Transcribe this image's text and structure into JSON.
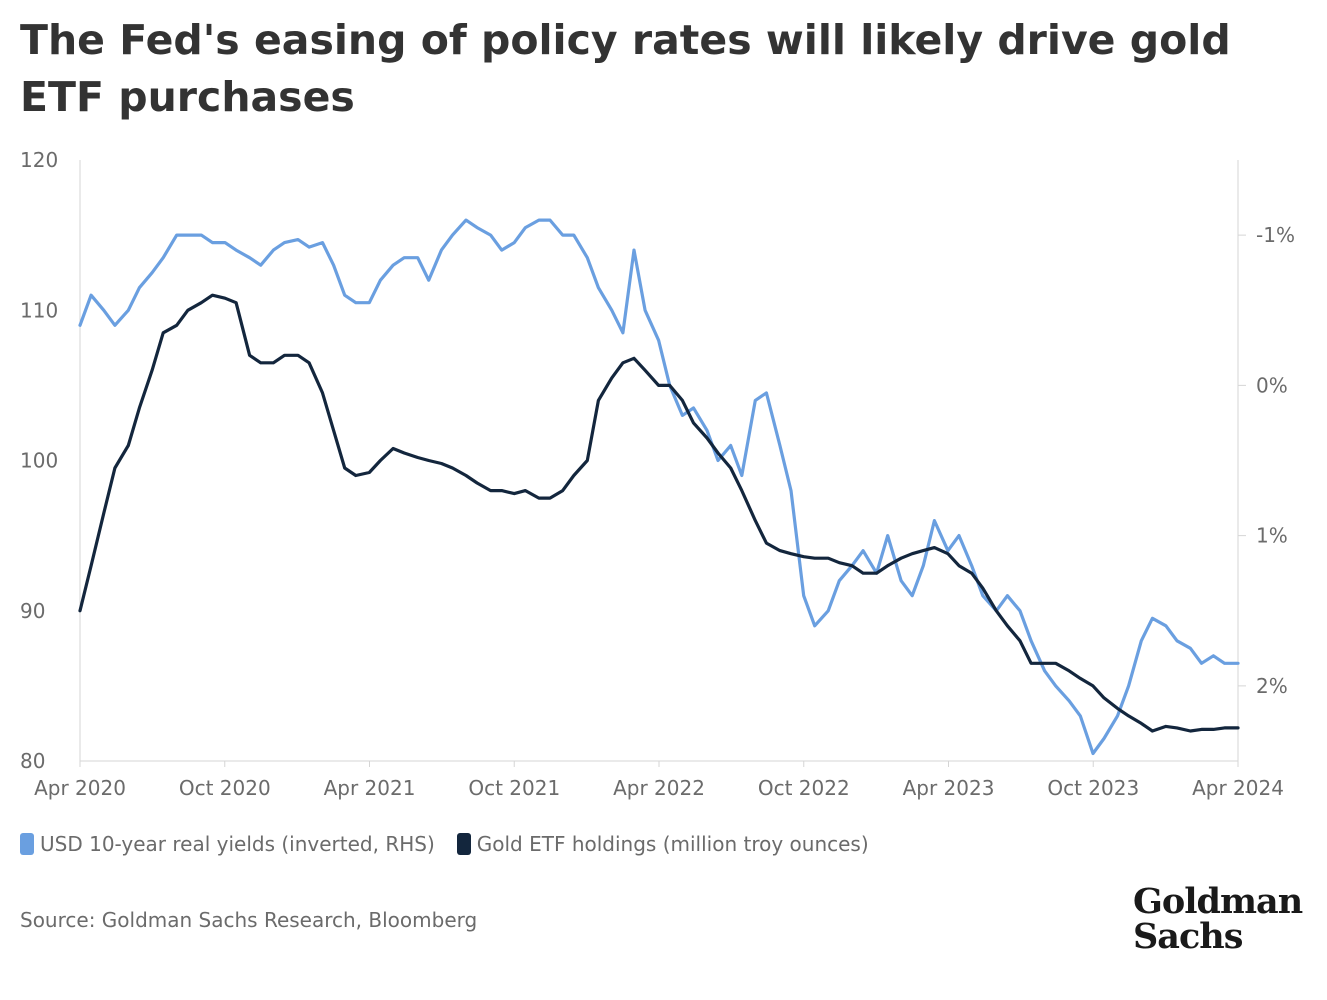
{
  "title": "The Fed's easing of policy rates will likely drive gold ETF purchases",
  "source": "Source: Goldman Sachs Research, Bloomberg",
  "logo": {
    "line1": "Goldman",
    "line2": "Sachs"
  },
  "colors": {
    "yields": "#6a9fe0",
    "gold": "#13263d",
    "axis": "#d5d5d5",
    "text": "#6b6b6b"
  },
  "chart_data": {
    "type": "line",
    "title": "The Fed's easing of policy rates will likely drive gold ETF purchases",
    "x_ticks": [
      "Apr 2020",
      "Oct 2020",
      "Apr 2021",
      "Oct 2021",
      "Apr 2022",
      "Oct 2022",
      "Apr 2023",
      "Oct 2023",
      "Apr 2024"
    ],
    "x_range": [
      "2020-04",
      "2024-04"
    ],
    "y_left": {
      "ticks": [
        120,
        110,
        100,
        90,
        80
      ],
      "range": [
        80,
        120
      ],
      "label": ""
    },
    "y_right": {
      "ticks": [
        "-1%",
        "0%",
        "1%",
        "2%"
      ],
      "tick_values": [
        -1,
        0,
        1,
        2
      ],
      "range": [
        -1.5,
        2.5
      ],
      "inverted": true,
      "label": ""
    },
    "legend_position": "bottom-left",
    "grid": false,
    "series": [
      {
        "name": "USD 10-year real yields (inverted, RHS)",
        "axis": "right",
        "unit": "%",
        "points": [
          [
            "2020-04-01",
            -0.4
          ],
          [
            "2020-04-15",
            -0.6
          ],
          [
            "2020-05-01",
            -0.5
          ],
          [
            "2020-05-15",
            -0.4
          ],
          [
            "2020-06-01",
            -0.5
          ],
          [
            "2020-06-15",
            -0.65
          ],
          [
            "2020-07-01",
            -0.75
          ],
          [
            "2020-07-15",
            -0.85
          ],
          [
            "2020-08-01",
            -1.0
          ],
          [
            "2020-08-15",
            -1.0
          ],
          [
            "2020-09-01",
            -1.0
          ],
          [
            "2020-09-15",
            -0.95
          ],
          [
            "2020-10-01",
            -0.95
          ],
          [
            "2020-10-15",
            -0.9
          ],
          [
            "2020-11-01",
            -0.85
          ],
          [
            "2020-11-15",
            -0.8
          ],
          [
            "2020-12-01",
            -0.9
          ],
          [
            "2020-12-15",
            -0.95
          ],
          [
            "2021-01-01",
            -0.97
          ],
          [
            "2021-01-15",
            -0.92
          ],
          [
            "2021-02-01",
            -0.95
          ],
          [
            "2021-02-15",
            -0.8
          ],
          [
            "2021-03-01",
            -0.6
          ],
          [
            "2021-03-15",
            -0.55
          ],
          [
            "2021-04-01",
            -0.55
          ],
          [
            "2021-04-15",
            -0.7
          ],
          [
            "2021-05-01",
            -0.8
          ],
          [
            "2021-05-15",
            -0.85
          ],
          [
            "2021-06-01",
            -0.85
          ],
          [
            "2021-06-15",
            -0.7
          ],
          [
            "2021-07-01",
            -0.9
          ],
          [
            "2021-07-15",
            -1.0
          ],
          [
            "2021-08-01",
            -1.1
          ],
          [
            "2021-08-15",
            -1.05
          ],
          [
            "2021-09-01",
            -1.0
          ],
          [
            "2021-09-15",
            -0.9
          ],
          [
            "2021-10-01",
            -0.95
          ],
          [
            "2021-10-15",
            -1.05
          ],
          [
            "2021-11-01",
            -1.1
          ],
          [
            "2021-11-15",
            -1.1
          ],
          [
            "2021-12-01",
            -1.0
          ],
          [
            "2021-12-15",
            -1.0
          ],
          [
            "2022-01-01",
            -0.85
          ],
          [
            "2022-01-15",
            -0.65
          ],
          [
            "2022-02-01",
            -0.5
          ],
          [
            "2022-02-15",
            -0.35
          ],
          [
            "2022-03-01",
            -0.9
          ],
          [
            "2022-03-15",
            -0.5
          ],
          [
            "2022-04-01",
            -0.3
          ],
          [
            "2022-04-15",
            0.0
          ],
          [
            "2022-05-01",
            0.2
          ],
          [
            "2022-05-15",
            0.15
          ],
          [
            "2022-06-01",
            0.3
          ],
          [
            "2022-06-15",
            0.5
          ],
          [
            "2022-07-01",
            0.4
          ],
          [
            "2022-07-15",
            0.6
          ],
          [
            "2022-08-01",
            0.1
          ],
          [
            "2022-08-15",
            0.05
          ],
          [
            "2022-09-01",
            0.4
          ],
          [
            "2022-09-15",
            0.7
          ],
          [
            "2022-10-01",
            1.4
          ],
          [
            "2022-10-15",
            1.6
          ],
          [
            "2022-11-01",
            1.5
          ],
          [
            "2022-11-15",
            1.3
          ],
          [
            "2022-12-01",
            1.2
          ],
          [
            "2022-12-15",
            1.1
          ],
          [
            "2023-01-01",
            1.25
          ],
          [
            "2023-01-15",
            1.0
          ],
          [
            "2023-02-01",
            1.3
          ],
          [
            "2023-02-15",
            1.4
          ],
          [
            "2023-03-01",
            1.2
          ],
          [
            "2023-03-15",
            0.9
          ],
          [
            "2023-04-01",
            1.1
          ],
          [
            "2023-04-15",
            1.0
          ],
          [
            "2023-05-01",
            1.2
          ],
          [
            "2023-05-15",
            1.4
          ],
          [
            "2023-06-01",
            1.5
          ],
          [
            "2023-06-15",
            1.4
          ],
          [
            "2023-07-01",
            1.5
          ],
          [
            "2023-07-15",
            1.7
          ],
          [
            "2023-08-01",
            1.9
          ],
          [
            "2023-08-15",
            2.0
          ],
          [
            "2023-09-01",
            2.1
          ],
          [
            "2023-09-15",
            2.2
          ],
          [
            "2023-10-01",
            2.45
          ],
          [
            "2023-10-15",
            2.35
          ],
          [
            "2023-11-01",
            2.2
          ],
          [
            "2023-11-15",
            2.0
          ],
          [
            "2023-12-01",
            1.7
          ],
          [
            "2023-12-15",
            1.55
          ],
          [
            "2024-01-01",
            1.6
          ],
          [
            "2024-01-15",
            1.7
          ],
          [
            "2024-02-01",
            1.75
          ],
          [
            "2024-02-15",
            1.85
          ],
          [
            "2024-03-01",
            1.8
          ],
          [
            "2024-03-15",
            1.85
          ],
          [
            "2024-04-01",
            1.85
          ]
        ]
      },
      {
        "name": "Gold ETF holdings (million troy ounces)",
        "axis": "left",
        "unit": "million troy ounces",
        "points": [
          [
            "2020-04-01",
            90.0
          ],
          [
            "2020-04-15",
            93.0
          ],
          [
            "2020-05-01",
            96.5
          ],
          [
            "2020-05-15",
            99.5
          ],
          [
            "2020-06-01",
            101.0
          ],
          [
            "2020-06-15",
            103.5
          ],
          [
            "2020-07-01",
            106.0
          ],
          [
            "2020-07-15",
            108.5
          ],
          [
            "2020-08-01",
            109.0
          ],
          [
            "2020-08-15",
            110.0
          ],
          [
            "2020-09-01",
            110.5
          ],
          [
            "2020-09-15",
            111.0
          ],
          [
            "2020-10-01",
            110.8
          ],
          [
            "2020-10-15",
            110.5
          ],
          [
            "2020-11-01",
            107.0
          ],
          [
            "2020-11-15",
            106.5
          ],
          [
            "2020-12-01",
            106.5
          ],
          [
            "2020-12-15",
            107.0
          ],
          [
            "2021-01-01",
            107.0
          ],
          [
            "2021-01-15",
            106.5
          ],
          [
            "2021-02-01",
            104.5
          ],
          [
            "2021-02-15",
            102.0
          ],
          [
            "2021-03-01",
            99.5
          ],
          [
            "2021-03-15",
            99.0
          ],
          [
            "2021-04-01",
            99.2
          ],
          [
            "2021-04-15",
            100.0
          ],
          [
            "2021-05-01",
            100.8
          ],
          [
            "2021-05-15",
            100.5
          ],
          [
            "2021-06-01",
            100.2
          ],
          [
            "2021-06-15",
            100.0
          ],
          [
            "2021-07-01",
            99.8
          ],
          [
            "2021-07-15",
            99.5
          ],
          [
            "2021-08-01",
            99.0
          ],
          [
            "2021-08-15",
            98.5
          ],
          [
            "2021-09-01",
            98.0
          ],
          [
            "2021-09-15",
            98.0
          ],
          [
            "2021-10-01",
            97.8
          ],
          [
            "2021-10-15",
            98.0
          ],
          [
            "2021-11-01",
            97.5
          ],
          [
            "2021-11-15",
            97.5
          ],
          [
            "2021-12-01",
            98.0
          ],
          [
            "2021-12-15",
            99.0
          ],
          [
            "2022-01-01",
            100.0
          ],
          [
            "2022-01-15",
            104.0
          ],
          [
            "2022-02-01",
            105.5
          ],
          [
            "2022-02-15",
            106.5
          ],
          [
            "2022-03-01",
            106.8
          ],
          [
            "2022-03-15",
            106.0
          ],
          [
            "2022-04-01",
            105.0
          ],
          [
            "2022-04-15",
            105.0
          ],
          [
            "2022-05-01",
            104.0
          ],
          [
            "2022-05-15",
            102.5
          ],
          [
            "2022-06-01",
            101.5
          ],
          [
            "2022-06-15",
            100.5
          ],
          [
            "2022-07-01",
            99.5
          ],
          [
            "2022-07-15",
            98.0
          ],
          [
            "2022-08-01",
            96.0
          ],
          [
            "2022-08-15",
            94.5
          ],
          [
            "2022-09-01",
            94.0
          ],
          [
            "2022-09-15",
            93.8
          ],
          [
            "2022-10-01",
            93.6
          ],
          [
            "2022-10-15",
            93.5
          ],
          [
            "2022-11-01",
            93.5
          ],
          [
            "2022-11-15",
            93.2
          ],
          [
            "2022-12-01",
            93.0
          ],
          [
            "2022-12-15",
            92.5
          ],
          [
            "2023-01-01",
            92.5
          ],
          [
            "2023-01-15",
            93.0
          ],
          [
            "2023-02-01",
            93.5
          ],
          [
            "2023-02-15",
            93.8
          ],
          [
            "2023-03-01",
            94.0
          ],
          [
            "2023-03-15",
            94.2
          ],
          [
            "2023-04-01",
            93.8
          ],
          [
            "2023-04-15",
            93.0
          ],
          [
            "2023-05-01",
            92.5
          ],
          [
            "2023-05-15",
            91.5
          ],
          [
            "2023-06-01",
            90.0
          ],
          [
            "2023-06-15",
            89.0
          ],
          [
            "2023-07-01",
            88.0
          ],
          [
            "2023-07-15",
            86.5
          ],
          [
            "2023-08-01",
            86.5
          ],
          [
            "2023-08-15",
            86.5
          ],
          [
            "2023-09-01",
            86.0
          ],
          [
            "2023-09-15",
            85.5
          ],
          [
            "2023-10-01",
            85.0
          ],
          [
            "2023-10-15",
            84.2
          ],
          [
            "2023-11-01",
            83.5
          ],
          [
            "2023-11-15",
            83.0
          ],
          [
            "2023-12-01",
            82.5
          ],
          [
            "2023-12-15",
            82.0
          ],
          [
            "2024-01-01",
            82.3
          ],
          [
            "2024-01-15",
            82.2
          ],
          [
            "2024-02-01",
            82.0
          ],
          [
            "2024-02-15",
            82.1
          ],
          [
            "2024-03-01",
            82.1
          ],
          [
            "2024-03-15",
            82.2
          ],
          [
            "2024-04-01",
            82.2
          ]
        ]
      }
    ]
  }
}
